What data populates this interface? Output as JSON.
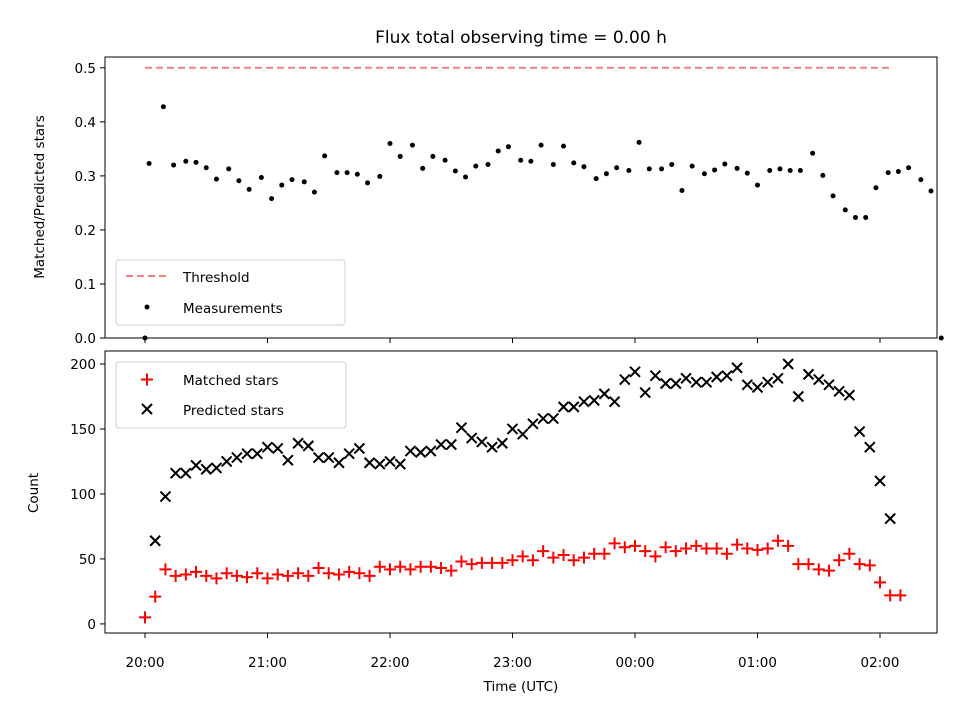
{
  "chart_data": [
    {
      "type": "scatter",
      "title": "Flux total observing time = 0.00 h",
      "xlabel": "",
      "ylabel": "Matched/Predicted stars",
      "ylim": [
        0,
        0.52
      ],
      "yticks": [
        0.0,
        0.1,
        0.2,
        0.3,
        0.4,
        0.5
      ],
      "ytick_labels": [
        "0.0",
        "0.1",
        "0.2",
        "0.3",
        "0.4",
        "0.5"
      ],
      "legend_placement": "lower-left",
      "threshold": {
        "name": "Threshold",
        "value": 0.5,
        "x_range": [
          "20:00",
          "02:05"
        ],
        "color": "#f08080",
        "style": "dashed"
      },
      "series": [
        {
          "name": "Measurements",
          "color": "#000000",
          "marker": "dot",
          "points": [
            [
              "20:00",
              0.0
            ],
            [
              "20:02",
              0.323
            ],
            [
              "20:09",
              0.428
            ],
            [
              "20:14",
              0.32
            ],
            [
              "20:20",
              0.327
            ],
            [
              "20:25",
              0.325
            ],
            [
              "20:30",
              0.315
            ],
            [
              "20:35",
              0.294
            ],
            [
              "20:41",
              0.313
            ],
            [
              "20:46",
              0.291
            ],
            [
              "20:51",
              0.275
            ],
            [
              "20:57",
              0.297
            ],
            [
              "21:02",
              0.258
            ],
            [
              "21:07",
              0.283
            ],
            [
              "21:12",
              0.293
            ],
            [
              "21:18",
              0.289
            ],
            [
              "21:23",
              0.27
            ],
            [
              "21:28",
              0.337
            ],
            [
              "21:34",
              0.306
            ],
            [
              "21:39",
              0.306
            ],
            [
              "21:44",
              0.303
            ],
            [
              "21:49",
              0.287
            ],
            [
              "21:55",
              0.299
            ],
            [
              "22:00",
              0.36
            ],
            [
              "22:05",
              0.336
            ],
            [
              "22:11",
              0.357
            ],
            [
              "22:16",
              0.314
            ],
            [
              "22:21",
              0.336
            ],
            [
              "22:27",
              0.329
            ],
            [
              "22:32",
              0.309
            ],
            [
              "22:37",
              0.298
            ],
            [
              "22:42",
              0.318
            ],
            [
              "22:48",
              0.321
            ],
            [
              "22:53",
              0.346
            ],
            [
              "22:58",
              0.354
            ],
            [
              "23:04",
              0.329
            ],
            [
              "23:09",
              0.327
            ],
            [
              "23:14",
              0.357
            ],
            [
              "23:20",
              0.321
            ],
            [
              "23:25",
              0.355
            ],
            [
              "23:30",
              0.324
            ],
            [
              "23:35",
              0.317
            ],
            [
              "23:41",
              0.295
            ],
            [
              "23:46",
              0.304
            ],
            [
              "23:51",
              0.315
            ],
            [
              "23:57",
              0.31
            ],
            [
              "00:02",
              0.362
            ],
            [
              "00:07",
              0.313
            ],
            [
              "00:13",
              0.313
            ],
            [
              "00:18",
              0.321
            ],
            [
              "00:23",
              0.273
            ],
            [
              "00:28",
              0.318
            ],
            [
              "00:34",
              0.304
            ],
            [
              "00:39",
              0.311
            ],
            [
              "00:44",
              0.322
            ],
            [
              "00:50",
              0.314
            ],
            [
              "00:55",
              0.305
            ],
            [
              "01:00",
              0.283
            ],
            [
              "01:06",
              0.31
            ],
            [
              "01:11",
              0.313
            ],
            [
              "01:16",
              0.31
            ],
            [
              "01:21",
              0.31
            ],
            [
              "01:27",
              0.342
            ],
            [
              "01:32",
              0.301
            ],
            [
              "01:37",
              0.263
            ],
            [
              "01:43",
              0.237
            ],
            [
              "01:48",
              0.223
            ],
            [
              "01:53",
              0.223
            ],
            [
              "01:58",
              0.278
            ],
            [
              "02:04",
              0.306
            ],
            [
              "02:09",
              0.308
            ],
            [
              "02:14",
              0.315
            ],
            [
              "02:20",
              0.293
            ],
            [
              "02:25",
              0.272
            ],
            [
              "02:30",
              0.0
            ]
          ]
        }
      ]
    },
    {
      "type": "scatter",
      "title": "",
      "xlabel": "Time (UTC)",
      "ylabel": "Count",
      "ylim": [
        -7,
        210
      ],
      "yticks": [
        0,
        50,
        100,
        150,
        200
      ],
      "ytick_labels": [
        "0",
        "50",
        "100",
        "150",
        "200"
      ],
      "xticks": [
        "20:00",
        "21:00",
        "22:00",
        "23:00",
        "00:00",
        "01:00",
        "02:00"
      ],
      "legend_placement": "upper-left",
      "series": [
        {
          "name": "Matched stars",
          "color": "#ff0000",
          "marker": "plus",
          "points": [
            [
              "20:00",
              5
            ],
            [
              "20:05",
              21
            ],
            [
              "20:10",
              42
            ],
            [
              "20:15",
              37
            ],
            [
              "20:20",
              38
            ],
            [
              "20:25",
              40
            ],
            [
              "20:30",
              37
            ],
            [
              "20:35",
              35
            ],
            [
              "20:40",
              39
            ],
            [
              "20:45",
              37
            ],
            [
              "20:50",
              36
            ],
            [
              "20:55",
              39
            ],
            [
              "21:00",
              35
            ],
            [
              "21:05",
              38
            ],
            [
              "21:10",
              37
            ],
            [
              "21:15",
              39
            ],
            [
              "21:20",
              37
            ],
            [
              "21:25",
              43
            ],
            [
              "21:30",
              39
            ],
            [
              "21:35",
              38
            ],
            [
              "21:40",
              40
            ],
            [
              "21:45",
              39
            ],
            [
              "21:50",
              37
            ],
            [
              "21:55",
              44
            ],
            [
              "22:00",
              42
            ],
            [
              "22:05",
              44
            ],
            [
              "22:10",
              42
            ],
            [
              "22:15",
              44
            ],
            [
              "22:20",
              44
            ],
            [
              "22:25",
              43
            ],
            [
              "22:30",
              41
            ],
            [
              "22:35",
              48
            ],
            [
              "22:40",
              46
            ],
            [
              "22:45",
              47
            ],
            [
              "22:50",
              47
            ],
            [
              "22:55",
              47
            ],
            [
              "23:00",
              49
            ],
            [
              "23:05",
              52
            ],
            [
              "23:10",
              49
            ],
            [
              "23:15",
              56
            ],
            [
              "23:20",
              51
            ],
            [
              "23:25",
              53
            ],
            [
              "23:30",
              49
            ],
            [
              "23:35",
              51
            ],
            [
              "23:40",
              54
            ],
            [
              "23:45",
              54
            ],
            [
              "23:50",
              62
            ],
            [
              "23:55",
              59
            ],
            [
              "00:00",
              60
            ],
            [
              "00:05",
              56
            ],
            [
              "00:10",
              52
            ],
            [
              "00:15",
              59
            ],
            [
              "00:20",
              56
            ],
            [
              "00:25",
              58
            ],
            [
              "00:30",
              60
            ],
            [
              "00:35",
              58
            ],
            [
              "00:40",
              58
            ],
            [
              "00:45",
              54
            ],
            [
              "00:50",
              61
            ],
            [
              "00:55",
              58
            ],
            [
              "01:00",
              57
            ],
            [
              "01:05",
              58
            ],
            [
              "01:10",
              64
            ],
            [
              "01:15",
              60
            ],
            [
              "01:20",
              46
            ],
            [
              "01:25",
              46
            ],
            [
              "01:30",
              42
            ],
            [
              "01:35",
              41
            ],
            [
              "01:40",
              49
            ],
            [
              "01:45",
              54
            ],
            [
              "01:50",
              46
            ],
            [
              "01:55",
              45
            ],
            [
              "02:00",
              32
            ],
            [
              "02:05",
              22
            ],
            [
              "02:10",
              22
            ]
          ]
        },
        {
          "name": "Predicted stars",
          "color": "#000000",
          "marker": "x",
          "points": [
            [
              "20:05",
              64
            ],
            [
              "20:10",
              98
            ],
            [
              "20:15",
              116
            ],
            [
              "20:20",
              116
            ],
            [
              "20:25",
              122
            ],
            [
              "20:30",
              119
            ],
            [
              "20:35",
              120
            ],
            [
              "20:40",
              125
            ],
            [
              "20:45",
              128
            ],
            [
              "20:50",
              131
            ],
            [
              "20:55",
              131
            ],
            [
              "21:00",
              136
            ],
            [
              "21:05",
              135
            ],
            [
              "21:10",
              126
            ],
            [
              "21:15",
              139
            ],
            [
              "21:20",
              137
            ],
            [
              "21:25",
              128
            ],
            [
              "21:30",
              128
            ],
            [
              "21:35",
              124
            ],
            [
              "21:40",
              131
            ],
            [
              "21:45",
              135
            ],
            [
              "21:50",
              124
            ],
            [
              "21:55",
              123
            ],
            [
              "22:00",
              125
            ],
            [
              "22:05",
              123
            ],
            [
              "22:10",
              133
            ],
            [
              "22:15",
              132
            ],
            [
              "22:20",
              133
            ],
            [
              "22:25",
              138
            ],
            [
              "22:30",
              138
            ],
            [
              "22:35",
              151
            ],
            [
              "22:40",
              143
            ],
            [
              "22:45",
              140
            ],
            [
              "22:50",
              136
            ],
            [
              "22:55",
              139
            ],
            [
              "23:00",
              150
            ],
            [
              "23:05",
              146
            ],
            [
              "23:10",
              154
            ],
            [
              "23:15",
              158
            ],
            [
              "23:20",
              158
            ],
            [
              "23:25",
              167
            ],
            [
              "23:30",
              167
            ],
            [
              "23:35",
              171
            ],
            [
              "23:40",
              172
            ],
            [
              "23:45",
              177
            ],
            [
              "23:50",
              171
            ],
            [
              "23:55",
              188
            ],
            [
              "00:00",
              194
            ],
            [
              "00:05",
              178
            ],
            [
              "00:10",
              191
            ],
            [
              "00:15",
              185
            ],
            [
              "00:20",
              185
            ],
            [
              "00:25",
              189
            ],
            [
              "00:30",
              186
            ],
            [
              "00:35",
              186
            ],
            [
              "00:40",
              190
            ],
            [
              "00:45",
              191
            ],
            [
              "00:50",
              197
            ],
            [
              "00:55",
              184
            ],
            [
              "01:00",
              182
            ],
            [
              "01:05",
              186
            ],
            [
              "01:10",
              189
            ],
            [
              "01:15",
              200
            ],
            [
              "01:20",
              175
            ],
            [
              "01:25",
              192
            ],
            [
              "01:30",
              188
            ],
            [
              "01:35",
              184
            ],
            [
              "01:40",
              179
            ],
            [
              "01:45",
              176
            ],
            [
              "01:50",
              148
            ],
            [
              "01:55",
              136
            ],
            [
              "02:00",
              110
            ],
            [
              "02:05",
              81
            ]
          ]
        }
      ]
    }
  ]
}
